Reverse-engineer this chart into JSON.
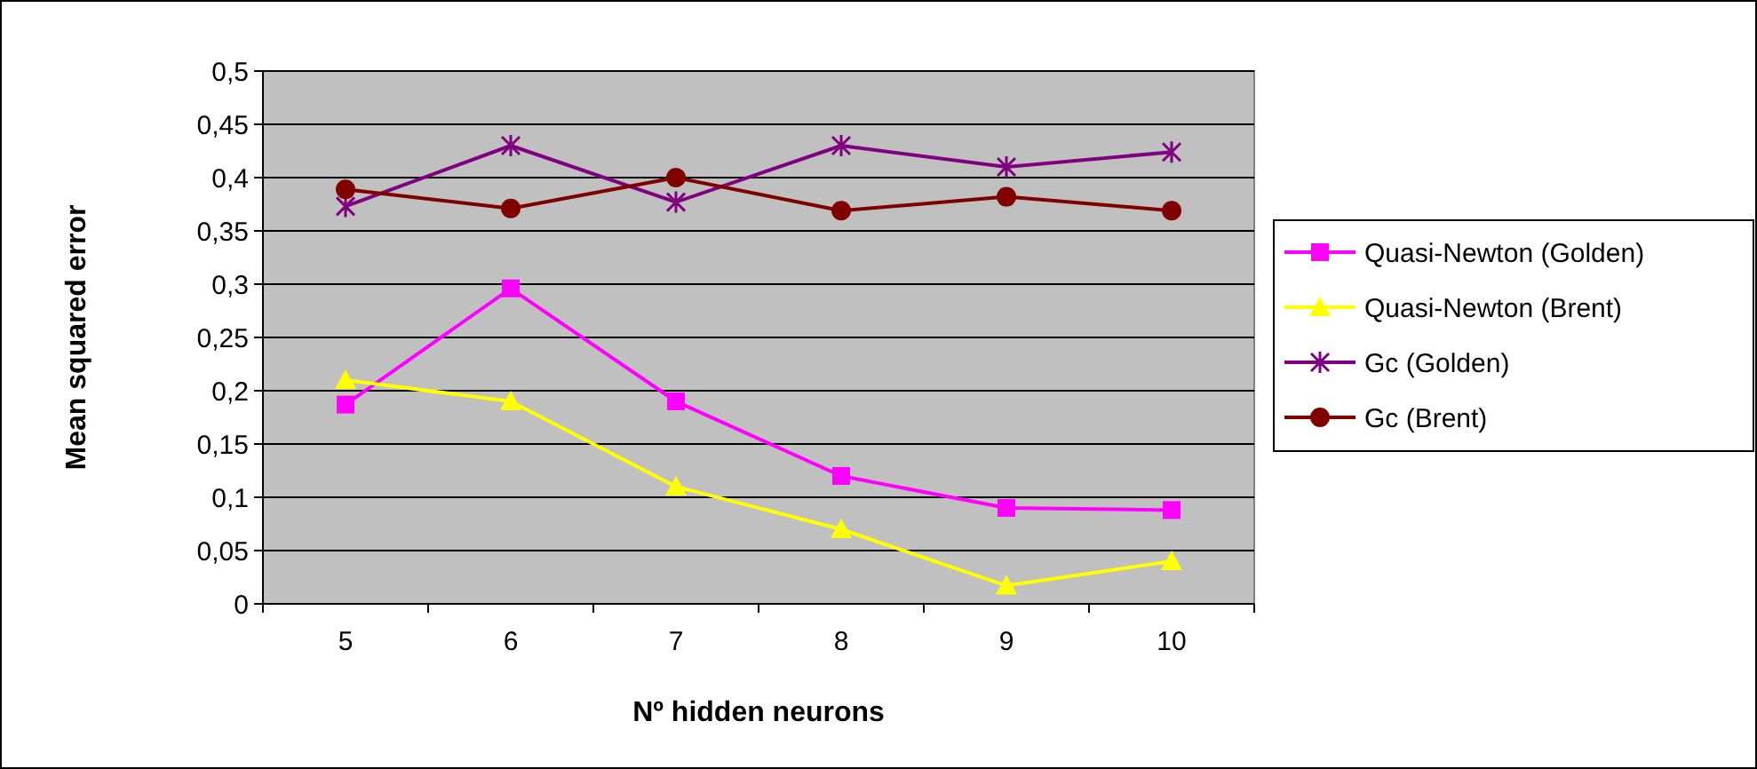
{
  "chart_data": {
    "type": "line",
    "xlabel": "Nº hidden neurons",
    "ylabel": "Mean squared error",
    "categories": [
      "5",
      "6",
      "7",
      "8",
      "9",
      "10"
    ],
    "series": [
      {
        "name": "Quasi-Newton (Golden)",
        "color": "#ff00ff",
        "marker": "square",
        "values": [
          0.187,
          0.296,
          0.19,
          0.12,
          0.09,
          0.088
        ]
      },
      {
        "name": "Quasi-Newton (Brent)",
        "color": "#ffff00",
        "marker": "triangle",
        "values": [
          0.21,
          0.19,
          0.11,
          0.07,
          0.017,
          0.04
        ]
      },
      {
        "name": "Gc (Golden)",
        "color": "#800080",
        "marker": "cross",
        "values": [
          0.373,
          0.43,
          0.377,
          0.43,
          0.41,
          0.424
        ]
      },
      {
        "name": "Gc (Brent)",
        "color": "#800000",
        "marker": "circle",
        "values": [
          0.389,
          0.371,
          0.4,
          0.369,
          0.382,
          0.369
        ]
      }
    ],
    "ylim": [
      0,
      0.5
    ],
    "yticks": [
      0,
      {
        "value": 0.05,
        "label": "0,05"
      },
      {
        "value": 0.1,
        "label": "0,1"
      },
      {
        "value": 0.15,
        "label": "0,15"
      },
      {
        "value": 0.2,
        "label": "0,2"
      },
      {
        "value": 0.25,
        "label": "0,25"
      },
      {
        "value": 0.3,
        "label": "0,3"
      },
      {
        "value": 0.35,
        "label": "0,35"
      },
      {
        "value": 0.4,
        "label": "0,4"
      },
      {
        "value": 0.45,
        "label": "0,45"
      },
      {
        "value": 0.5,
        "label": "0,5"
      }
    ],
    "grid": "y",
    "legend": "right",
    "line_style": "solid"
  }
}
